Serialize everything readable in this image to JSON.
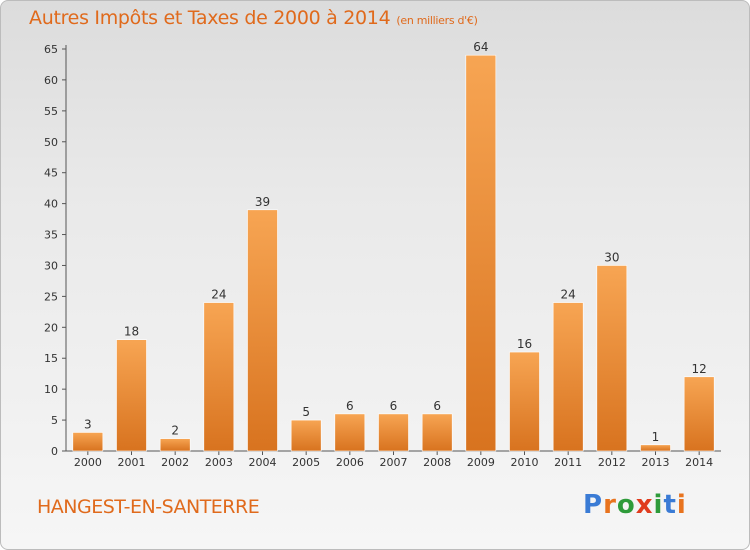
{
  "chart_data": {
    "type": "bar",
    "title": "Autres Impôts et Taxes de 2000 à 2014",
    "subtitle": "(en milliers d'€)",
    "categories": [
      "2000",
      "2001",
      "2002",
      "2003",
      "2004",
      "2005",
      "2006",
      "2007",
      "2008",
      "2009",
      "2010",
      "2011",
      "2012",
      "2013",
      "2014"
    ],
    "values": [
      3,
      18,
      2,
      24,
      39,
      5,
      6,
      6,
      6,
      64,
      16,
      24,
      30,
      1,
      12
    ],
    "ylim": [
      0,
      65
    ],
    "yticks": [
      0,
      5,
      10,
      15,
      20,
      25,
      30,
      35,
      40,
      45,
      50,
      55,
      60,
      65
    ],
    "grid": false,
    "bar_color": "#f0923a"
  },
  "footer": {
    "place": "HANGEST-EN-SANTERRE",
    "logo": "Proxiti"
  }
}
